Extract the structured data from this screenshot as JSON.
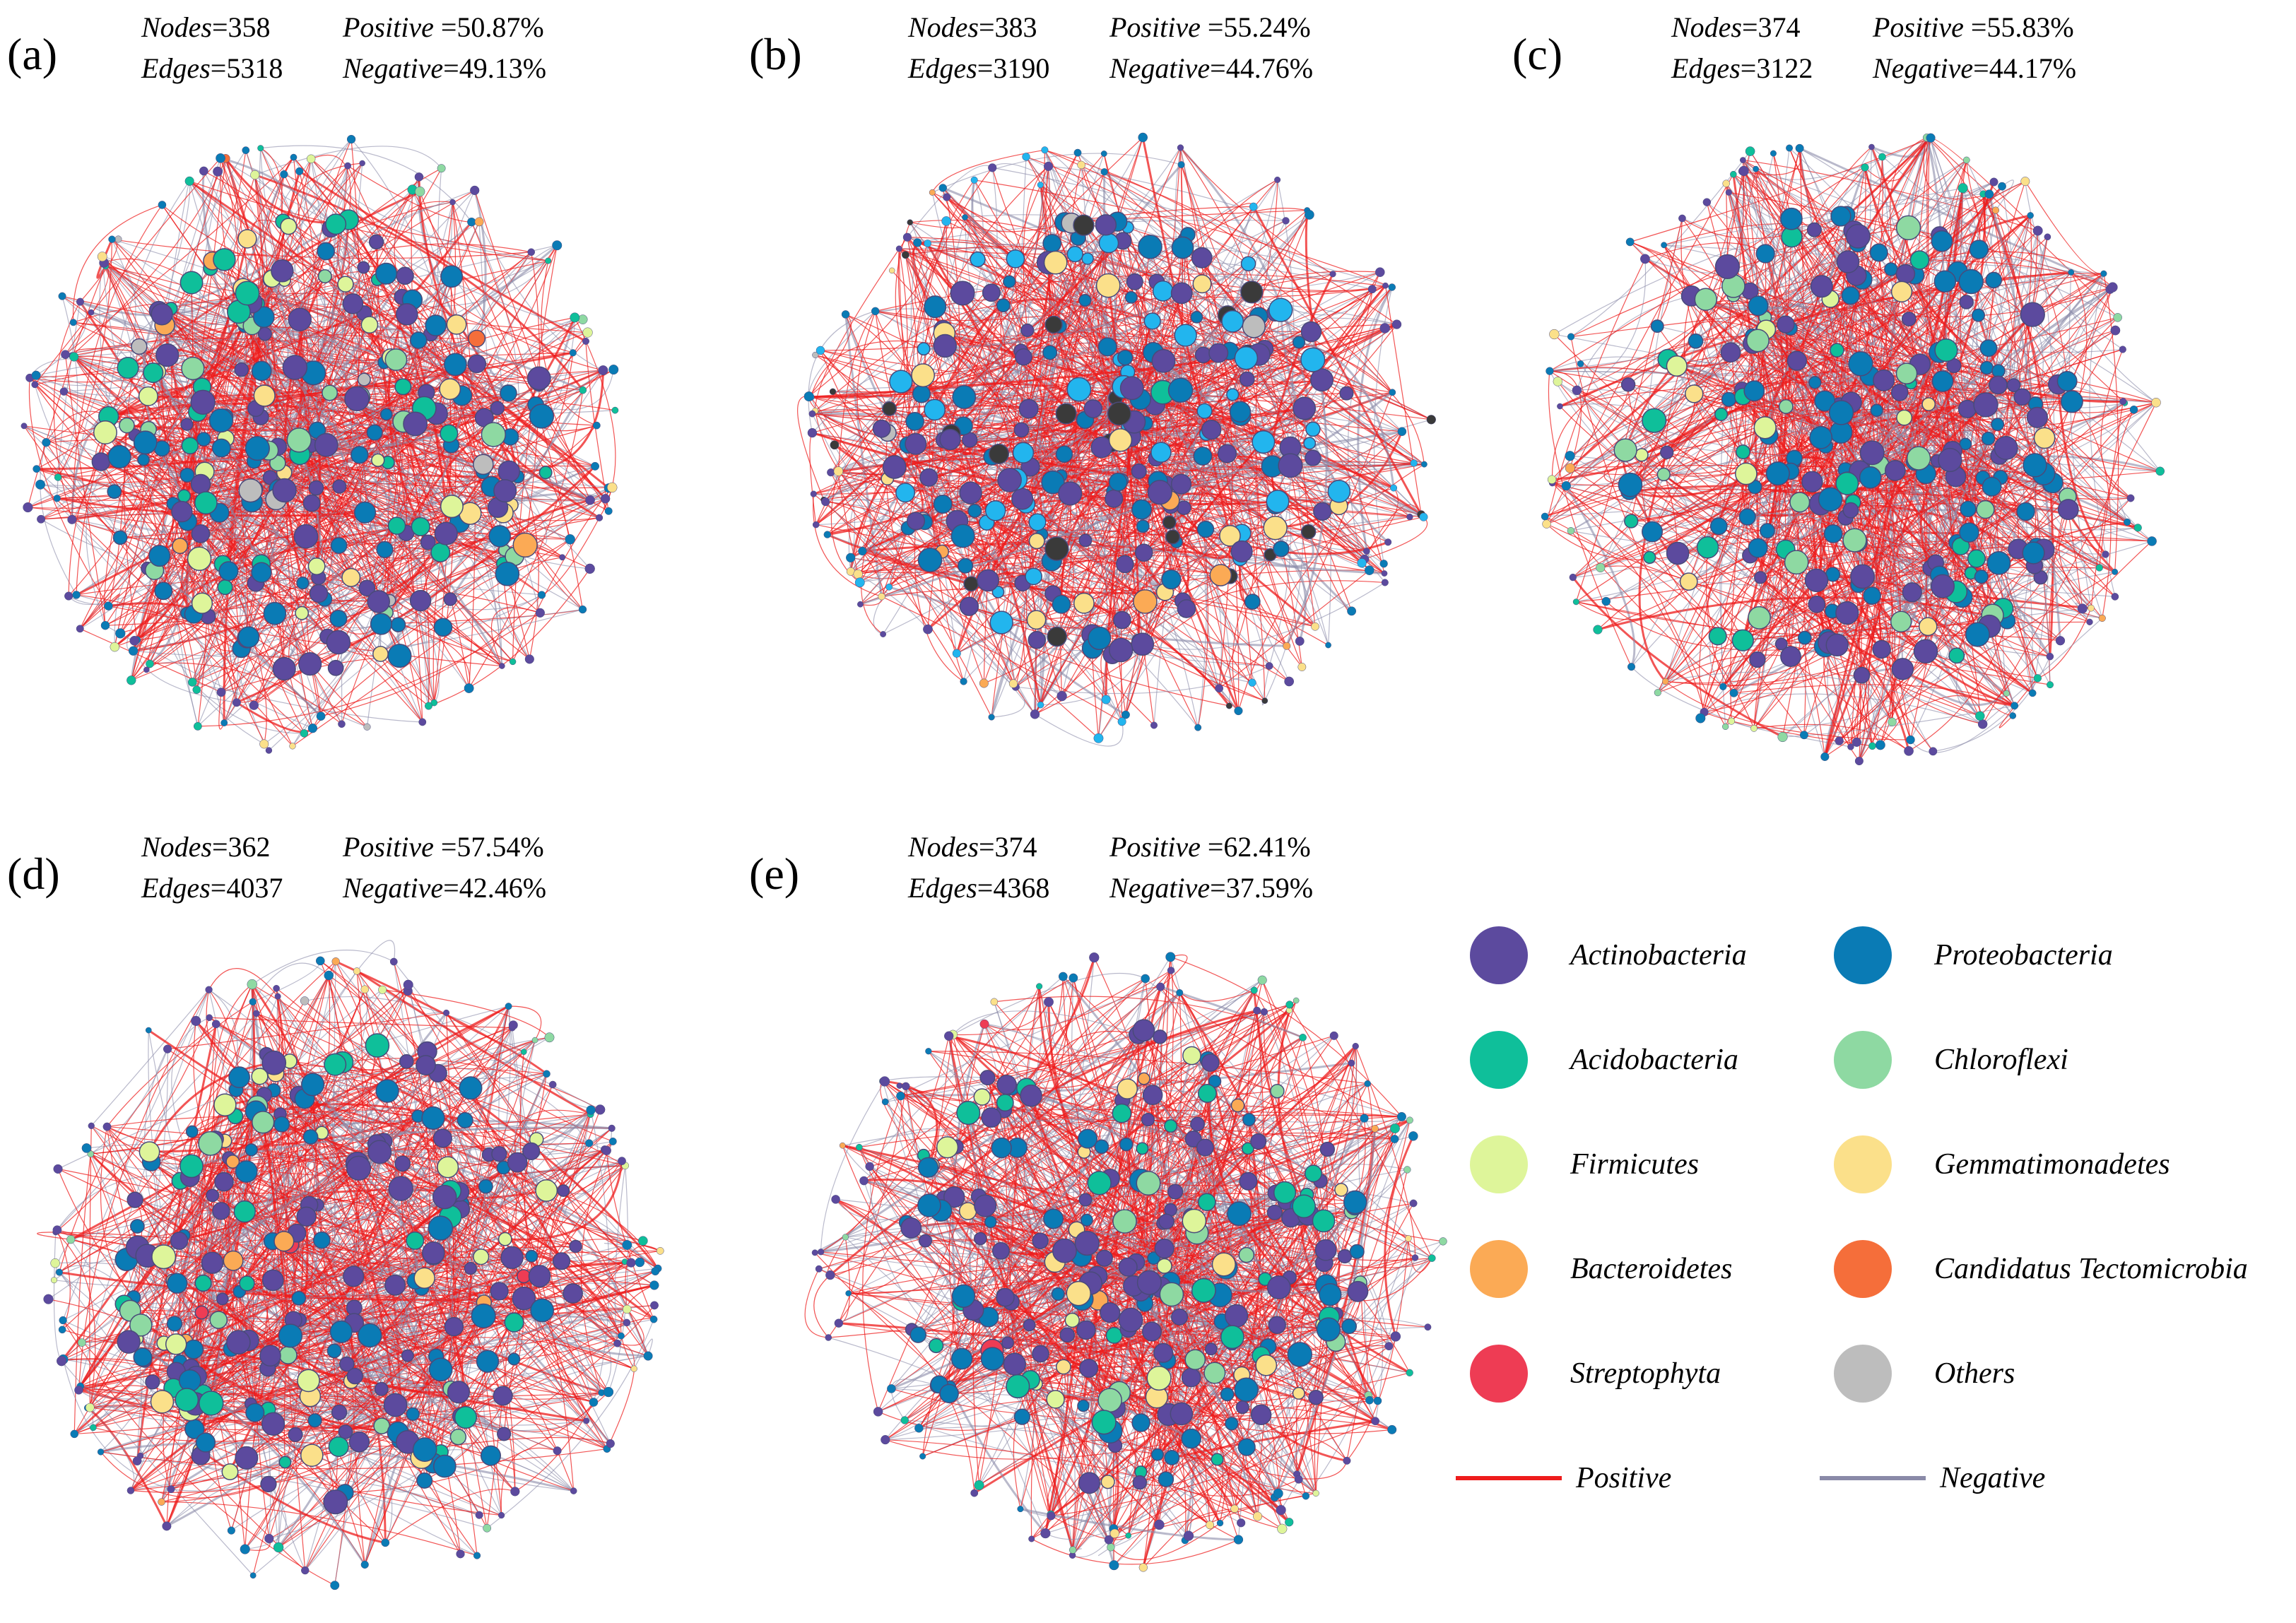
{
  "panels": [
    {
      "id": "a",
      "label": "(a)",
      "nodes_label": "Nodes",
      "nodes": "=358",
      "edges_label": "Edges",
      "edges": "=5318",
      "positive_label": "Positive",
      "positive": " =50.87%",
      "negative_label": "Negative",
      "negative": "=49.13%"
    },
    {
      "id": "b",
      "label": "(b)",
      "nodes_label": "Nodes",
      "nodes": "=383",
      "edges_label": "Edges",
      "edges": "=3190",
      "positive_label": "Positive",
      "positive": " =55.24%",
      "negative_label": "Negative",
      "negative": "=44.76%"
    },
    {
      "id": "c",
      "label": "(c)",
      "nodes_label": "Nodes",
      "nodes": "=374",
      "edges_label": "Edges",
      "edges": "=3122",
      "positive_label": "Positive",
      "positive": " =55.83%",
      "negative_label": "Negative",
      "negative": "=44.17%"
    },
    {
      "id": "d",
      "label": "(d)",
      "nodes_label": "Nodes",
      "nodes": "=362",
      "edges_label": "Edges",
      "edges": "=4037",
      "positive_label": "Positive",
      "positive": " =57.54%",
      "negative_label": "Negative",
      "negative": "=42.46%"
    },
    {
      "id": "e",
      "label": "(e)",
      "nodes_label": "Nodes",
      "nodes": "=374",
      "edges_label": "Edges",
      "edges": "=4368",
      "positive_label": "Positive",
      "positive": " =62.41%",
      "negative_label": "Negative",
      "negative": "=37.59%"
    }
  ],
  "legend": {
    "taxa": [
      {
        "name": "Actinobacteria",
        "color": "#5c4a9e"
      },
      {
        "name": "Proteobacteria",
        "color": "#0a7bb5"
      },
      {
        "name": "Acidobacteria",
        "color": "#0fbf9a"
      },
      {
        "name": "Chloroflexi",
        "color": "#8ed9a2"
      },
      {
        "name": "Firmicutes",
        "color": "#def59a"
      },
      {
        "name": "Gemmatimonadetes",
        "color": "#fbe08a"
      },
      {
        "name": "Bacteroidetes",
        "color": "#fbaa55"
      },
      {
        "name": "Candidatus Tectomicrobia",
        "color": "#f56e3a"
      },
      {
        "name": "Streptophyta",
        "color": "#ee3c54"
      },
      {
        "name": "Others",
        "color": "#bdbdbd"
      }
    ],
    "edges": [
      {
        "name": "Positive",
        "color": "#ee1c1c"
      },
      {
        "name": "Negative",
        "color": "#8a8aa8"
      }
    ]
  },
  "extra_colors": {
    "panel_b_light_blue": "#22b5ee",
    "panel_b_dark": "#3a3a3a"
  }
}
